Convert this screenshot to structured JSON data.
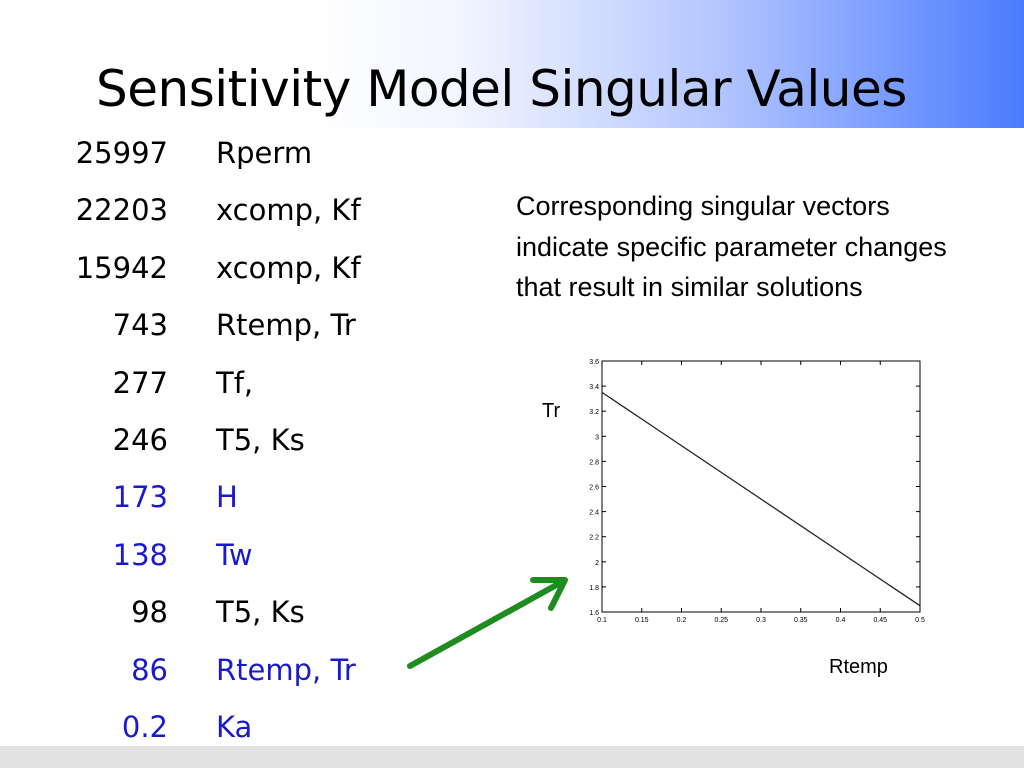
{
  "slide": {
    "title": "Sensitivity Model Singular Values",
    "note": "Corresponding singular vectors indicate specific parameter changes that result in similar solutions"
  },
  "singular_values": [
    {
      "value": "25997",
      "params": "Rperm",
      "highlight": false
    },
    {
      "value": "22203",
      "params": "xcomp, Kf",
      "highlight": false
    },
    {
      "value": "15942",
      "params": "xcomp, Kf",
      "highlight": false
    },
    {
      "value": "743",
      "params": "Rtemp, Tr",
      "highlight": false
    },
    {
      "value": "277",
      "params": "Tf,",
      "highlight": false
    },
    {
      "value": "246",
      "params": "T5, Ks",
      "highlight": false
    },
    {
      "value": "173",
      "params": "H",
      "highlight": true
    },
    {
      "value": "138",
      "params": "Tw",
      "highlight": true
    },
    {
      "value": "98",
      "params": "T5, Ks",
      "highlight": false
    },
    {
      "value": "86",
      "params": "Rtemp, Tr",
      "highlight": true
    },
    {
      "value": "0.2",
      "params": "Ka",
      "highlight": true
    }
  ],
  "colors": {
    "highlight": "#1a1acc",
    "arrow": "#1e8c1e",
    "plot_line": "#222222"
  },
  "chart_data": {
    "type": "line",
    "xlabel": "Rtemp",
    "ylabel": "Tr",
    "xlim": [
      0.1,
      0.5
    ],
    "ylim": [
      1.6,
      3.6
    ],
    "x_ticks": [
      "0.1",
      "0.15",
      "0.2",
      "0.25",
      "0.3",
      "0.35",
      "0.4",
      "0.45",
      "0.5"
    ],
    "y_ticks": [
      "1.6",
      "1.8",
      "2",
      "2.2",
      "2.4",
      "2.6",
      "2.8",
      "3",
      "3.2",
      "3.4",
      "3.6"
    ],
    "series": [
      {
        "x": [
          0.1,
          0.5
        ],
        "y": [
          3.35,
          1.65
        ]
      }
    ],
    "grid": false
  }
}
